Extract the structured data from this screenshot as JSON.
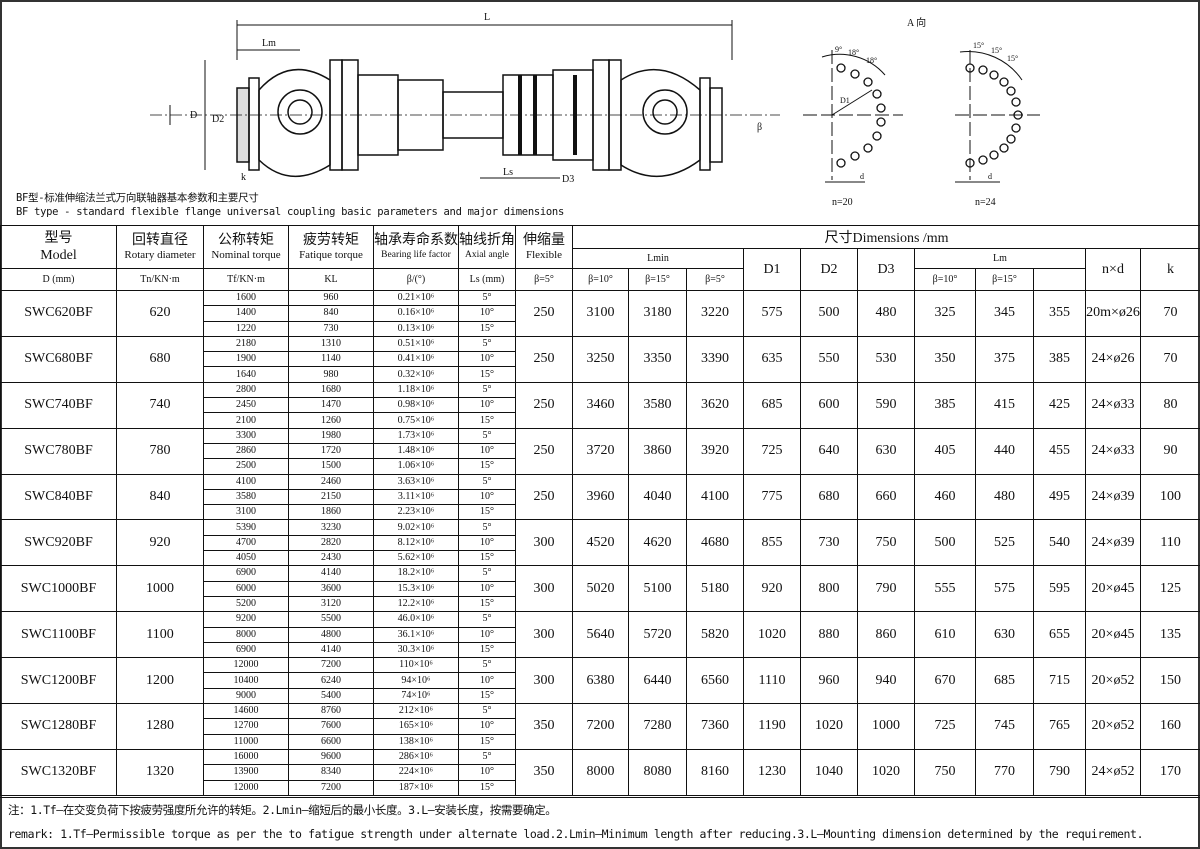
{
  "drawing": {
    "labels": {
      "L": "L",
      "Lm": "Lm",
      "Ls": "Ls",
      "D": "D",
      "D1": "D1",
      "D2": "D2",
      "D3": "D3",
      "k": "k",
      "beta": "β",
      "view": "A 向",
      "n20": "n=20",
      "n24": "n=24",
      "d": "d",
      "a9": "9°",
      "a18a": "18°",
      "a18b": "18°",
      "a15a": "15°",
      "a15b": "15°",
      "a15c": "15°"
    },
    "caption_cn": "BF型-标准伸缩法兰式万向联轴器基本参数和主要尺寸",
    "caption_en": "BF type - standard flexible flange universal coupling basic parameters and major dimensions"
  },
  "header": {
    "model_cn": "型号",
    "model_en": "Model",
    "rot_cn": "回转直径",
    "rot_en": "Rotary diameter",
    "rot_unit": "D (mm)",
    "nom_cn": "公称转矩",
    "nom_en": "Nominal torque",
    "nom_unit": "Tn/KN·m",
    "fat_cn": "疲劳转矩",
    "fat_en": "Fatique torque",
    "fat_unit": "Tf/KN·m",
    "kl_cn": "轴承寿命系数",
    "kl_en": "Bearing life factor",
    "kl_unit": "KL",
    "ang_cn": "轴线折角",
    "ang_en": "Axial angle",
    "ang_unit": "β/(°)",
    "flex_cn": "伸缩量",
    "flex_en": "Flexible",
    "flex_unit": "Ls (mm)",
    "dims": "尺寸Dimensions /mm",
    "lmin": "Lmin",
    "lm": "Lm",
    "d1": "D1",
    "d2": "D2",
    "d3": "D3",
    "nxd": "n×d",
    "k": "k",
    "b5": "β=5°",
    "b10": "β=10°",
    "b15": "β=15°"
  },
  "rows": [
    {
      "model": "SWC620BF",
      "D": "620",
      "nom": [
        "1600",
        "1400",
        "1220"
      ],
      "fat": [
        "960",
        "840",
        "730"
      ],
      "kl": [
        "0.21×10⁶",
        "0.16×10⁶",
        "0.13×10⁶"
      ],
      "ang": [
        "5°",
        "10°",
        "15°"
      ],
      "ls": "250",
      "lmin": [
        "3100",
        "3180",
        "3220"
      ],
      "d1": "575",
      "d2": "500",
      "d3": "480",
      "lm": [
        "325",
        "345",
        "355"
      ],
      "nxd": "20m×ø26",
      "k": "70"
    },
    {
      "model": "SWC680BF",
      "D": "680",
      "nom": [
        "2180",
        "1900",
        "1640"
      ],
      "fat": [
        "1310",
        "1140",
        "980"
      ],
      "kl": [
        "0.51×10⁶",
        "0.41×10⁶",
        "0.32×10⁶"
      ],
      "ang": [
        "5°",
        "10°",
        "15°"
      ],
      "ls": "250",
      "lmin": [
        "3250",
        "3350",
        "3390"
      ],
      "d1": "635",
      "d2": "550",
      "d3": "530",
      "lm": [
        "350",
        "375",
        "385"
      ],
      "nxd": "24×ø26",
      "k": "70"
    },
    {
      "model": "SWC740BF",
      "D": "740",
      "nom": [
        "2800",
        "2450",
        "2100"
      ],
      "fat": [
        "1680",
        "1470",
        "1260"
      ],
      "kl": [
        "1.18×10⁶",
        "0.98×10⁶",
        "0.75×10⁶"
      ],
      "ang": [
        "5°",
        "10°",
        "15°"
      ],
      "ls": "250",
      "lmin": [
        "3460",
        "3580",
        "3620"
      ],
      "d1": "685",
      "d2": "600",
      "d3": "590",
      "lm": [
        "385",
        "415",
        "425"
      ],
      "nxd": "24×ø33",
      "k": "80"
    },
    {
      "model": "SWC780BF",
      "D": "780",
      "nom": [
        "3300",
        "2860",
        "2500"
      ],
      "fat": [
        "1980",
        "1720",
        "1500"
      ],
      "kl": [
        "1.73×10⁶",
        "1.48×10⁶",
        "1.06×10⁶"
      ],
      "ang": [
        "5°",
        "10°",
        "15°"
      ],
      "ls": "250",
      "lmin": [
        "3720",
        "3860",
        "3920"
      ],
      "d1": "725",
      "d2": "640",
      "d3": "630",
      "lm": [
        "405",
        "440",
        "455"
      ],
      "nxd": "24×ø33",
      "k": "90"
    },
    {
      "model": "SWC840BF",
      "D": "840",
      "nom": [
        "4100",
        "3580",
        "3100"
      ],
      "fat": [
        "2460",
        "2150",
        "1860"
      ],
      "kl": [
        "3.63×10⁶",
        "3.11×10⁶",
        "2.23×10⁶"
      ],
      "ang": [
        "5°",
        "10°",
        "15°"
      ],
      "ls": "250",
      "lmin": [
        "3960",
        "4040",
        "4100"
      ],
      "d1": "775",
      "d2": "680",
      "d3": "660",
      "lm": [
        "460",
        "480",
        "495"
      ],
      "nxd": "24×ø39",
      "k": "100"
    },
    {
      "model": "SWC920BF",
      "D": "920",
      "nom": [
        "5390",
        "4700",
        "4050"
      ],
      "fat": [
        "3230",
        "2820",
        "2430"
      ],
      "kl": [
        "9.02×10⁶",
        "8.12×10⁶",
        "5.62×10⁶"
      ],
      "ang": [
        "5°",
        "10°",
        "15°"
      ],
      "ls": "300",
      "lmin": [
        "4520",
        "4620",
        "4680"
      ],
      "d1": "855",
      "d2": "730",
      "d3": "750",
      "lm": [
        "500",
        "525",
        "540"
      ],
      "nxd": "24×ø39",
      "k": "110"
    },
    {
      "model": "SWC1000BF",
      "D": "1000",
      "nom": [
        "6900",
        "6000",
        "5200"
      ],
      "fat": [
        "4140",
        "3600",
        "3120"
      ],
      "kl": [
        "18.2×10⁶",
        "15.3×10⁶",
        "12.2×10⁶"
      ],
      "ang": [
        "5°",
        "10°",
        "15°"
      ],
      "ls": "300",
      "lmin": [
        "5020",
        "5100",
        "5180"
      ],
      "d1": "920",
      "d2": "800",
      "d3": "790",
      "lm": [
        "555",
        "575",
        "595"
      ],
      "nxd": "20×ø45",
      "k": "125"
    },
    {
      "model": "SWC1100BF",
      "D": "1100",
      "nom": [
        "9200",
        "8000",
        "6900"
      ],
      "fat": [
        "5500",
        "4800",
        "4140"
      ],
      "kl": [
        "46.0×10⁶",
        "36.1×10⁶",
        "30.3×10⁶"
      ],
      "ang": [
        "5°",
        "10°",
        "15°"
      ],
      "ls": "300",
      "lmin": [
        "5640",
        "5720",
        "5820"
      ],
      "d1": "1020",
      "d2": "880",
      "d3": "860",
      "lm": [
        "610",
        "630",
        "655"
      ],
      "nxd": "20×ø45",
      "k": "135"
    },
    {
      "model": "SWC1200BF",
      "D": "1200",
      "nom": [
        "12000",
        "10400",
        "9000"
      ],
      "fat": [
        "7200",
        "6240",
        "5400"
      ],
      "kl": [
        "110×10⁶",
        "94×10⁶",
        "74×10⁶"
      ],
      "ang": [
        "5°",
        "10°",
        "15°"
      ],
      "ls": "300",
      "lmin": [
        "6380",
        "6440",
        "6560"
      ],
      "d1": "1110",
      "d2": "960",
      "d3": "940",
      "lm": [
        "670",
        "685",
        "715"
      ],
      "nxd": "20×ø52",
      "k": "150"
    },
    {
      "model": "SWC1280BF",
      "D": "1280",
      "nom": [
        "14600",
        "12700",
        "11000"
      ],
      "fat": [
        "8760",
        "7600",
        "6600"
      ],
      "kl": [
        "212×10⁶",
        "165×10⁶",
        "138×10⁶"
      ],
      "ang": [
        "5°",
        "10°",
        "15°"
      ],
      "ls": "350",
      "lmin": [
        "7200",
        "7280",
        "7360"
      ],
      "d1": "1190",
      "d2": "1020",
      "d3": "1000",
      "lm": [
        "725",
        "745",
        "765"
      ],
      "nxd": "20×ø52",
      "k": "160"
    },
    {
      "model": "SWC1320BF",
      "D": "1320",
      "nom": [
        "16000",
        "13900",
        "12000"
      ],
      "fat": [
        "9600",
        "8340",
        "7200"
      ],
      "kl": [
        "286×10⁶",
        "224×10⁶",
        "187×10⁶"
      ],
      "ang": [
        "5°",
        "10°",
        "15°"
      ],
      "ls": "350",
      "lmin": [
        "8000",
        "8080",
        "8160"
      ],
      "d1": "1230",
      "d2": "1040",
      "d3": "1020",
      "lm": [
        "750",
        "770",
        "790"
      ],
      "nxd": "24×ø52",
      "k": "170"
    }
  ],
  "notes": {
    "cn": "注：1.Tf—在交变负荷下按疲劳强度所允许的转矩。2.Lmin—缩短后的最小长度。3.L—安装长度，按需要确定。",
    "en": "remark: 1.Tf—Permissible torque as per the to fatigue strength under alternate load.2.Lmin—Minimum length after reducing.3.L—Mounting dimension determined by the requirement."
  }
}
